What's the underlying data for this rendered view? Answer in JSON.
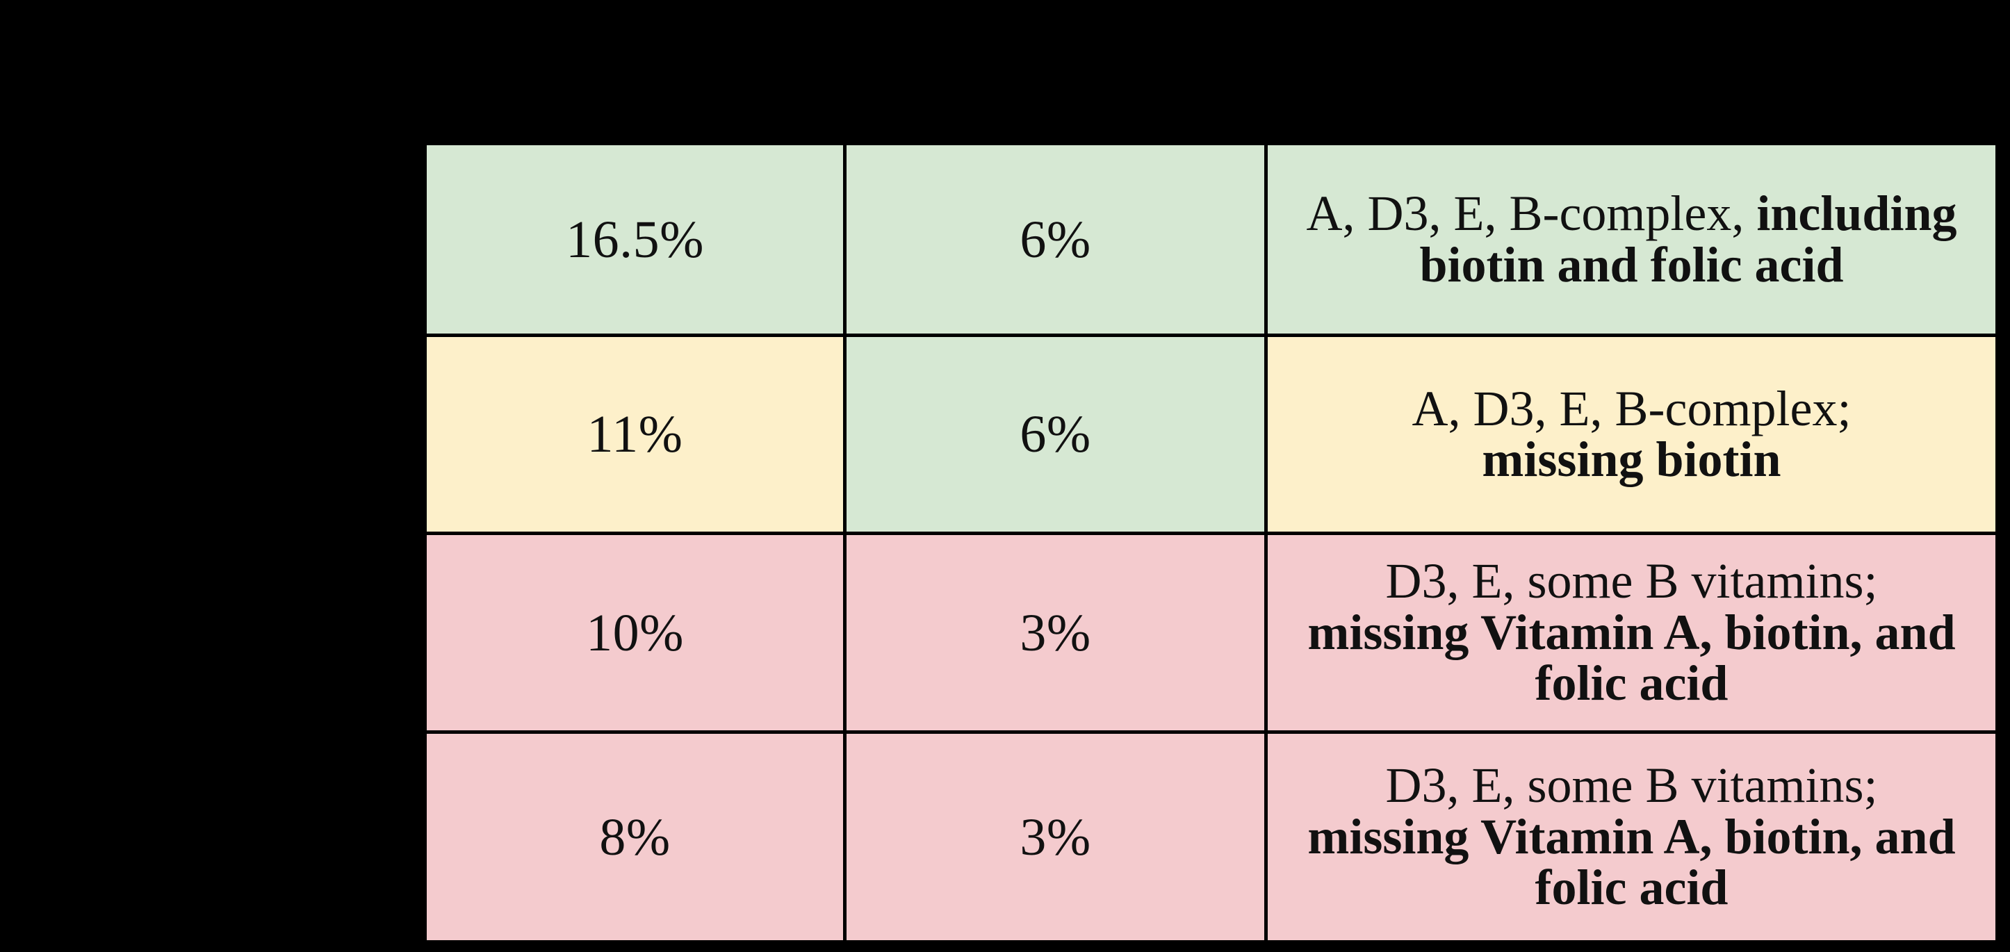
{
  "page": {
    "background": "#000000",
    "text_color": "#111111"
  },
  "legend_colors": {
    "green": "#d6e8d3",
    "yellow": "#fdf0ca",
    "pink": "#f4cbce",
    "grid_line": "#000000"
  },
  "table": {
    "rows": [
      {
        "pct1": "16.5%",
        "pct2": "6%",
        "desc_regular": "A, D3, E, B-complex, ",
        "desc_bold": "including biotin and folic acid",
        "pct1_status": "green",
        "pct2_status": "green",
        "desc_status": "green"
      },
      {
        "pct1": "11%",
        "pct2": "6%",
        "desc_regular": "A, D3, E, B-complex;",
        "desc_bold": "missing biotin",
        "pct1_status": "yellow",
        "pct2_status": "green",
        "desc_status": "yellow"
      },
      {
        "pct1": "10%",
        "pct2": "3%",
        "desc_regular": "D3, E, some B vitamins;",
        "desc_bold": "missing Vitamin A, biotin, and folic acid",
        "pct1_status": "pink",
        "pct2_status": "pink",
        "desc_status": "pink"
      },
      {
        "pct1": "8%",
        "pct2": "3%",
        "desc_regular": "D3, E, some B vitamins;",
        "desc_bold": "missing Vitamin A, biotin, and folic acid",
        "pct1_status": "pink",
        "pct2_status": "pink",
        "desc_status": "pink"
      }
    ]
  }
}
